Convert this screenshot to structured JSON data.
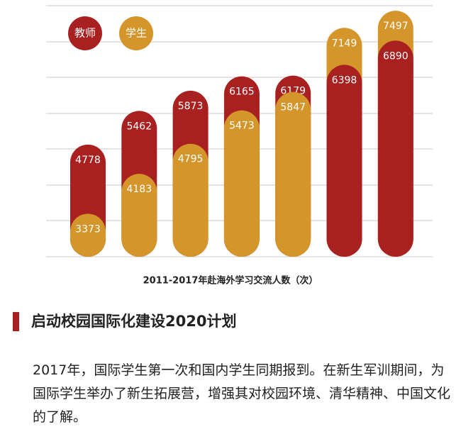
{
  "chart_data": {
    "type": "bar",
    "title": "2011-2017年赴海外学习交流人数（次）",
    "categories": [
      null,
      null,
      null,
      null,
      null,
      null,
      null
    ],
    "series": [
      {
        "name": "教师",
        "color": "#a8201f",
        "values": [
          4778,
          5462,
          5873,
          6165,
          6179,
          6398,
          6890
        ]
      },
      {
        "name": "学生",
        "color": "#d4952a",
        "values": [
          3373,
          4183,
          4795,
          5473,
          5847,
          7149,
          7497
        ]
      }
    ],
    "ylim": [
      2500,
      7600
    ],
    "grid": true
  },
  "section": {
    "heading": "启动校园国际化建设2020计划",
    "paragraph": "2017年，国际学生第一次和国内学生同期报到。在新生军训期间，为国际学生举办了新生拓展营，增强其对校园环境、清华精神、中国文化的了解。"
  }
}
